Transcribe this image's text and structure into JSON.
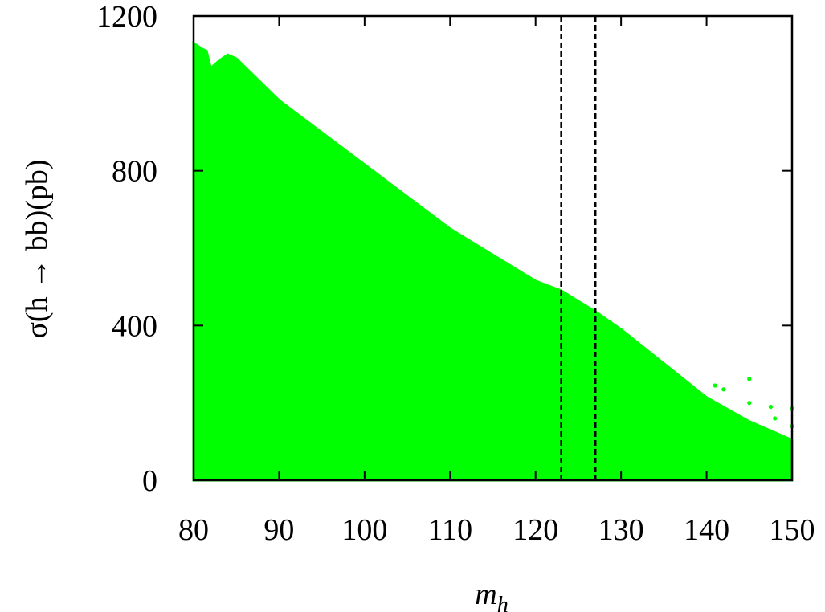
{
  "chart_data": {
    "type": "area",
    "xlabel": {
      "base": "m",
      "sub": "h"
    },
    "ylabel": "σ(h → bb)(pb)",
    "x": [
      80,
      81,
      81.5,
      82,
      83,
      84,
      85,
      90,
      100,
      110,
      120,
      123,
      127,
      130,
      140,
      145,
      150
    ],
    "values": [
      1130,
      1115,
      1110,
      1065,
      1085,
      1100,
      1090,
      982,
      816,
      650,
      515,
      490,
      436,
      390,
      214,
      152,
      104
    ],
    "color": "#00ff00",
    "outliers": {
      "x": [
        141,
        142,
        145,
        145,
        147.5,
        148,
        150,
        150
      ],
      "values": [
        245,
        235,
        262,
        200,
        190,
        160,
        185,
        140
      ]
    },
    "reference_lines": [
      123,
      127
    ],
    "xlim": [
      80,
      150
    ],
    "ylim": [
      0,
      1200
    ],
    "xticks": [
      80,
      90,
      100,
      110,
      120,
      130,
      140,
      150
    ],
    "yticks": [
      0,
      400,
      800,
      1200
    ]
  }
}
